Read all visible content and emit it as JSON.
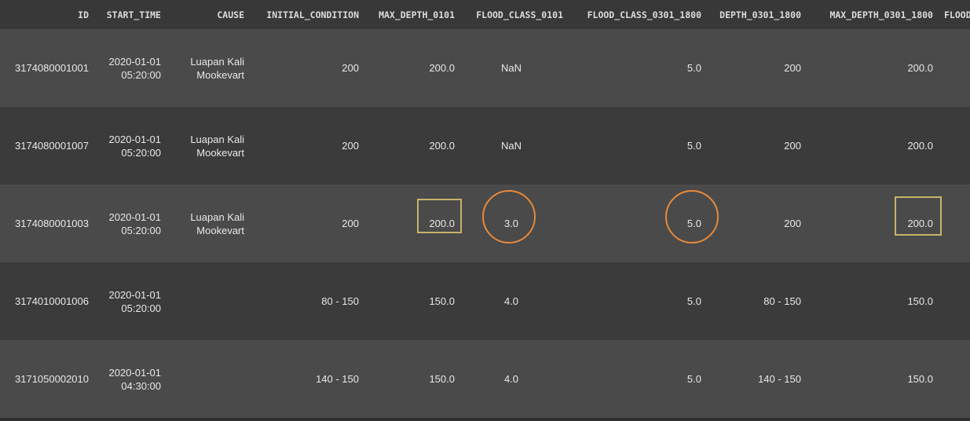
{
  "table": {
    "columns": [
      "ID",
      "START_TIME",
      "CAUSE",
      "INITIAL_CONDITION",
      "MAX_DEPTH_0101",
      "FLOOD_CLASS_0101",
      "FLOOD_CLASS_0301_1800",
      "DEPTH_0301_1800",
      "MAX_DEPTH_0301_1800",
      "FLOOD"
    ],
    "rows": [
      {
        "id": "3174080001001",
        "start_date": "2020-01-01",
        "start_clock": "05:20:00",
        "cause_line1": "Luapan Kali",
        "cause_line2": "Mookevart",
        "initial_condition": "200",
        "max_depth_0101": "200.0",
        "flood_class_0101": "NaN",
        "flood_class_0301_1800": "5.0",
        "depth_0301_1800": "200",
        "max_depth_0301_1800": "200.0"
      },
      {
        "id": "3174080001007",
        "start_date": "2020-01-01",
        "start_clock": "05:20:00",
        "cause_line1": "Luapan Kali",
        "cause_line2": "Mookevart",
        "initial_condition": "200",
        "max_depth_0101": "200.0",
        "flood_class_0101": "NaN",
        "flood_class_0301_1800": "5.0",
        "depth_0301_1800": "200",
        "max_depth_0301_1800": "200.0"
      },
      {
        "id": "3174080001003",
        "start_date": "2020-01-01",
        "start_clock": "05:20:00",
        "cause_line1": "Luapan Kali",
        "cause_line2": "Mookevart",
        "initial_condition": "200",
        "max_depth_0101": "200.0",
        "flood_class_0101": "3.0",
        "flood_class_0301_1800": "5.0",
        "depth_0301_1800": "200",
        "max_depth_0301_1800": "200.0"
      },
      {
        "id": "3174010001006",
        "start_date": "2020-01-01",
        "start_clock": "05:20:00",
        "cause_line1": "",
        "cause_line2": "",
        "initial_condition": "80 - 150",
        "max_depth_0101": "150.0",
        "flood_class_0101": "4.0",
        "flood_class_0301_1800": "5.0",
        "depth_0301_1800": "80 - 150",
        "max_depth_0301_1800": "150.0"
      },
      {
        "id": "3171050002010",
        "start_date": "2020-01-01",
        "start_clock": "04:30:00",
        "cause_line1": "",
        "cause_line2": "",
        "initial_condition": "140 - 150",
        "max_depth_0101": "150.0",
        "flood_class_0101": "4.0",
        "flood_class_0301_1800": "5.0",
        "depth_0301_1800": "140 - 150",
        "max_depth_0301_1800": "150.0"
      }
    ]
  },
  "colors": {
    "box_highlight": "#c9b36a",
    "circle_highlight": "#e8893a",
    "row_light": "#4a4a4a",
    "row_dark": "#3b3b3b"
  }
}
